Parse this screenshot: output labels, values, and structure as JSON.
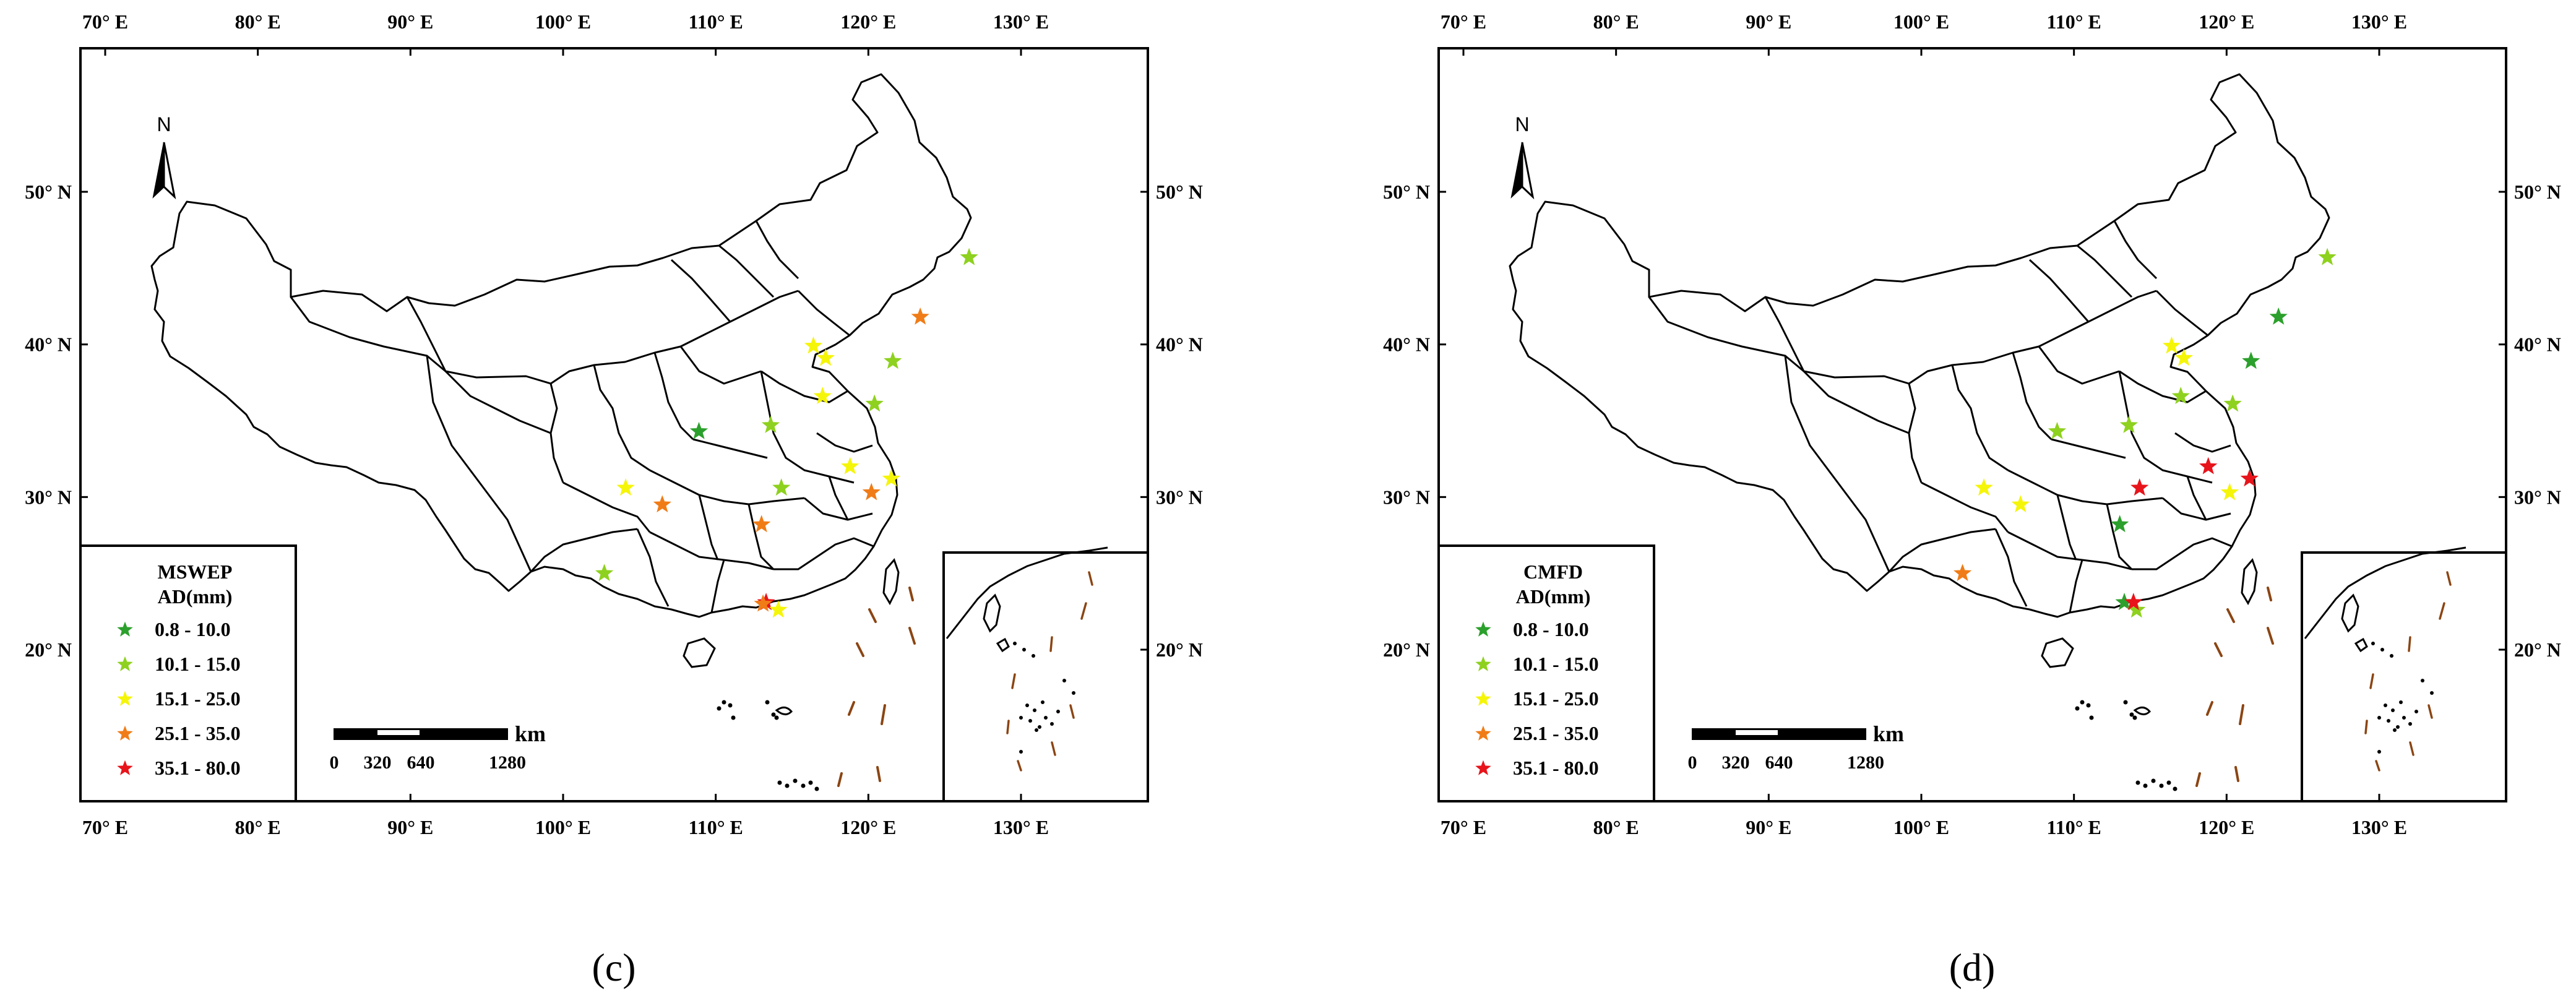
{
  "panels": [
    {
      "key": "c",
      "caption": "(c)",
      "legend_title": [
        "MSWEP",
        "AD(mm)"
      ],
      "stations": [
        {
          "lon": 126.6,
          "lat": 45.7,
          "cls": 1
        },
        {
          "lon": 123.4,
          "lat": 41.8,
          "cls": 3
        },
        {
          "lon": 116.4,
          "lat": 39.9,
          "cls": 2
        },
        {
          "lon": 117.2,
          "lat": 39.1,
          "cls": 2
        },
        {
          "lon": 121.6,
          "lat": 38.9,
          "cls": 1
        },
        {
          "lon": 117.0,
          "lat": 36.6,
          "cls": 2
        },
        {
          "lon": 120.4,
          "lat": 36.1,
          "cls": 1
        },
        {
          "lon": 108.9,
          "lat": 34.3,
          "cls": 0
        },
        {
          "lon": 113.6,
          "lat": 34.7,
          "cls": 1
        },
        {
          "lon": 118.8,
          "lat": 32.0,
          "cls": 2
        },
        {
          "lon": 121.5,
          "lat": 31.2,
          "cls": 2
        },
        {
          "lon": 104.1,
          "lat": 30.6,
          "cls": 2
        },
        {
          "lon": 106.5,
          "lat": 29.5,
          "cls": 3
        },
        {
          "lon": 114.3,
          "lat": 30.6,
          "cls": 1
        },
        {
          "lon": 120.2,
          "lat": 30.3,
          "cls": 3
        },
        {
          "lon": 113.0,
          "lat": 28.2,
          "cls": 3
        },
        {
          "lon": 102.7,
          "lat": 25.0,
          "cls": 1
        },
        {
          "lon": 113.3,
          "lat": 23.1,
          "cls": 4
        },
        {
          "lon": 114.1,
          "lat": 22.6,
          "cls": 2
        },
        {
          "lon": 113.1,
          "lat": 23.0,
          "cls": 3
        }
      ]
    },
    {
      "key": "d",
      "caption": "(d)",
      "legend_title": [
        "CMFD",
        "AD(mm)"
      ],
      "stations": [
        {
          "lon": 126.6,
          "lat": 45.7,
          "cls": 1
        },
        {
          "lon": 123.4,
          "lat": 41.8,
          "cls": 0
        },
        {
          "lon": 116.4,
          "lat": 39.9,
          "cls": 2
        },
        {
          "lon": 117.2,
          "lat": 39.1,
          "cls": 2
        },
        {
          "lon": 121.6,
          "lat": 38.9,
          "cls": 0
        },
        {
          "lon": 117.0,
          "lat": 36.6,
          "cls": 1
        },
        {
          "lon": 120.4,
          "lat": 36.1,
          "cls": 1
        },
        {
          "lon": 108.9,
          "lat": 34.3,
          "cls": 1
        },
        {
          "lon": 113.6,
          "lat": 34.7,
          "cls": 1
        },
        {
          "lon": 118.8,
          "lat": 32.0,
          "cls": 4
        },
        {
          "lon": 121.5,
          "lat": 31.2,
          "cls": 4
        },
        {
          "lon": 104.1,
          "lat": 30.6,
          "cls": 2
        },
        {
          "lon": 106.5,
          "lat": 29.5,
          "cls": 2
        },
        {
          "lon": 114.3,
          "lat": 30.6,
          "cls": 4
        },
        {
          "lon": 120.2,
          "lat": 30.3,
          "cls": 2
        },
        {
          "lon": 113.0,
          "lat": 28.2,
          "cls": 0
        },
        {
          "lon": 102.7,
          "lat": 25.0,
          "cls": 3
        },
        {
          "lon": 113.3,
          "lat": 23.1,
          "cls": 0
        },
        {
          "lon": 114.1,
          "lat": 22.6,
          "cls": 1
        },
        {
          "lon": 113.9,
          "lat": 23.1,
          "cls": 4
        }
      ]
    }
  ],
  "legend_classes": [
    {
      "label": "0.8 - 10.0",
      "color": "#2ca02c"
    },
    {
      "label": "10.1 - 15.0",
      "color": "#8ed11f"
    },
    {
      "label": "15.1 - 25.0",
      "color": "#f5f50a"
    },
    {
      "label": "25.1 - 35.0",
      "color": "#f07c17"
    },
    {
      "label": "35.1 - 80.0",
      "color": "#e8141b"
    }
  ],
  "top_ticks": [
    "70° E",
    "80° E",
    "90° E",
    "100° E",
    "110° E",
    "120° E",
    "130° E"
  ],
  "top_tick_lons": [
    70,
    80,
    90,
    100,
    110,
    120,
    130
  ],
  "bottom_ticks": [
    "70° E",
    "80° E",
    "90° E",
    "100° E",
    "110° E",
    "120° E",
    "130° E"
  ],
  "bottom_tick_lons": [
    70,
    80,
    90,
    100,
    110,
    120,
    130
  ],
  "lat_ticks": [
    "50° N",
    "40° N",
    "30° N",
    "20° N"
  ],
  "lat_tick_lats": [
    50,
    40,
    30,
    20
  ],
  "scale_bar": {
    "unit": "km",
    "labels": [
      "0",
      "320",
      "640",
      "1280"
    ]
  },
  "north_label": "N",
  "icon_names": [
    "north-arrow-icon",
    "star-marker-icon"
  ]
}
